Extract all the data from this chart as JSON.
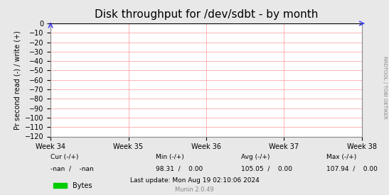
{
  "title": "Disk throughput for /dev/sdbt - by month",
  "ylabel": "Pr second read (-) / write (+)",
  "xlabel_ticks": [
    "Week 34",
    "Week 35",
    "Week 36",
    "Week 37",
    "Week 38"
  ],
  "ylim": [
    -120,
    0
  ],
  "yticks": [
    0,
    -10,
    -20,
    -30,
    -40,
    -50,
    -60,
    -70,
    -80,
    -90,
    -100,
    -110,
    -120
  ],
  "bg_color": "#e8e8e8",
  "plot_bg_color": "#ffffff",
  "grid_color": "#ff9999",
  "axis_color": "#000000",
  "title_color": "#000000",
  "side_label": "RRDTOOL / TOBI OETIKER",
  "legend_label": "Bytes",
  "legend_color": "#00cc00",
  "footer_line1": "Cur (-/+)              Min (-/+)              Avg (-/+)              Max (-/+)",
  "footer_line2": "  -nan /    -nan     98.31 /    0.00     105.05 /    0.00     107.94 /    0.00",
  "footer_line3": "Last update: Mon Aug 19 02:10:06 2024",
  "munin_version": "Munin 2.0.49",
  "arrow_color": "#4444ff",
  "tick_label_color": "#000000"
}
